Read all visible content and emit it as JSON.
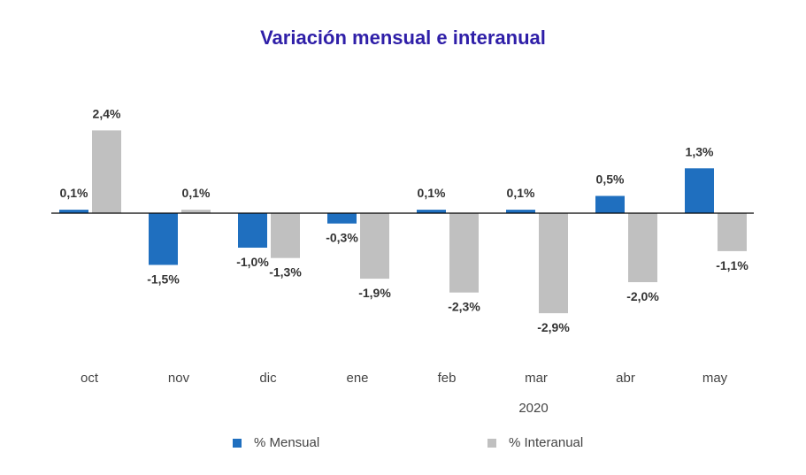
{
  "chart_data": {
    "type": "bar",
    "title": "Variación mensual e interanual",
    "categories": [
      "oct",
      "nov",
      "dic",
      "ene",
      "feb",
      "mar",
      "abr",
      "may"
    ],
    "year_label": "2020",
    "series": [
      {
        "name": "% Mensual",
        "color": "#1f6fbf",
        "values": [
          0.1,
          -1.5,
          -1.0,
          -0.3,
          0.1,
          0.1,
          0.5,
          1.3
        ],
        "labels": [
          "0,1%",
          "-1,5%",
          "-1,0%",
          "-0,3%",
          "0,1%",
          "0,1%",
          "0,5%",
          "1,3%"
        ]
      },
      {
        "name": "% Interanual",
        "color": "#c0c0c0",
        "values": [
          2.4,
          0.1,
          -1.3,
          -1.9,
          -2.3,
          -2.9,
          -2.0,
          -1.1
        ],
        "labels": [
          "2,4%",
          "0,1%",
          "-1,3%",
          "-1,9%",
          "-2,3%",
          "-2,9%",
          "-2,0%",
          "-1,1%"
        ]
      }
    ],
    "grid": false,
    "legend_position": "bottom"
  }
}
